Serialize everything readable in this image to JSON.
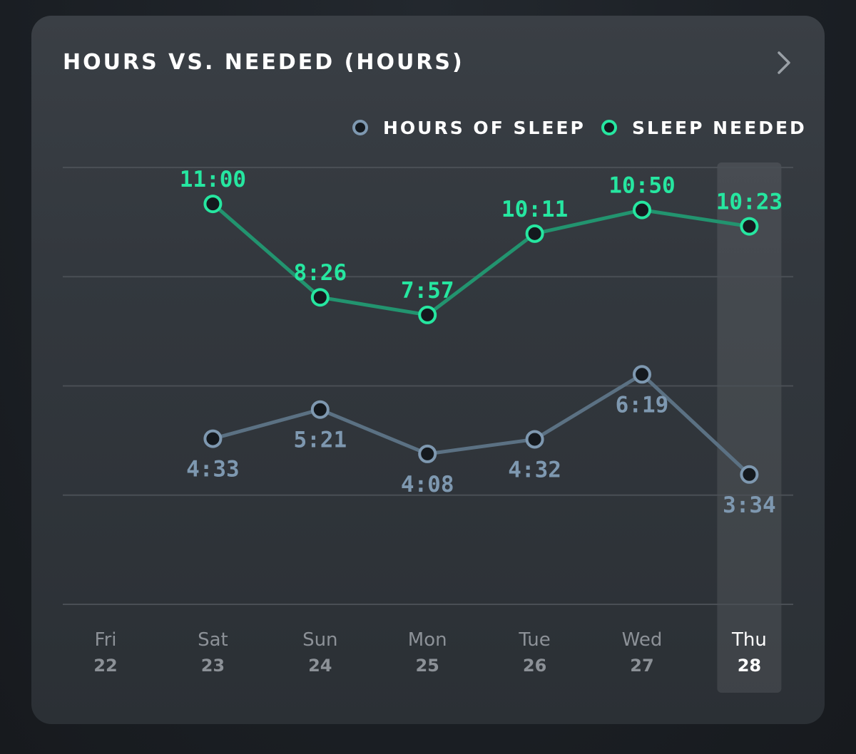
{
  "card": {
    "title": "HOURS VS. NEEDED (HOURS)",
    "chevron_icon": "chevron-right-icon"
  },
  "colors": {
    "sleep": "#7e98b0",
    "sleep_line": "#5b7183",
    "needed": "#26e6a0",
    "needed_line": "#22946f",
    "marker_fill": "#14191e",
    "grid": "#4a4f55",
    "axis_text": "#8c9197",
    "highlight": "#ffffff"
  },
  "chart_data": {
    "type": "line",
    "categories": [
      {
        "day": "Fri",
        "date": "22"
      },
      {
        "day": "Sat",
        "date": "23"
      },
      {
        "day": "Sun",
        "date": "24"
      },
      {
        "day": "Mon",
        "date": "25"
      },
      {
        "day": "Tue",
        "date": "26"
      },
      {
        "day": "Wed",
        "date": "27"
      },
      {
        "day": "Thu",
        "date": "28"
      }
    ],
    "selected_index": 6,
    "ylim": [
      0,
      12
    ],
    "grid": true,
    "legend_position": "top-right",
    "series": [
      {
        "name": "HOURS OF SLEEP",
        "values": [
          null,
          4.55,
          5.35,
          4.133,
          4.533,
          6.317,
          3.567
        ],
        "labels": [
          null,
          "4:33",
          "5:21",
          "4:08",
          "4:32",
          "6:19",
          "3:34"
        ],
        "label_position": "below"
      },
      {
        "name": "SLEEP NEEDED",
        "values": [
          null,
          11.0,
          8.433,
          7.95,
          10.183,
          10.833,
          10.383
        ],
        "labels": [
          null,
          "11:00",
          "8:26",
          "7:57",
          "10:11",
          "10:50",
          "10:23"
        ],
        "label_position": "above"
      }
    ]
  }
}
